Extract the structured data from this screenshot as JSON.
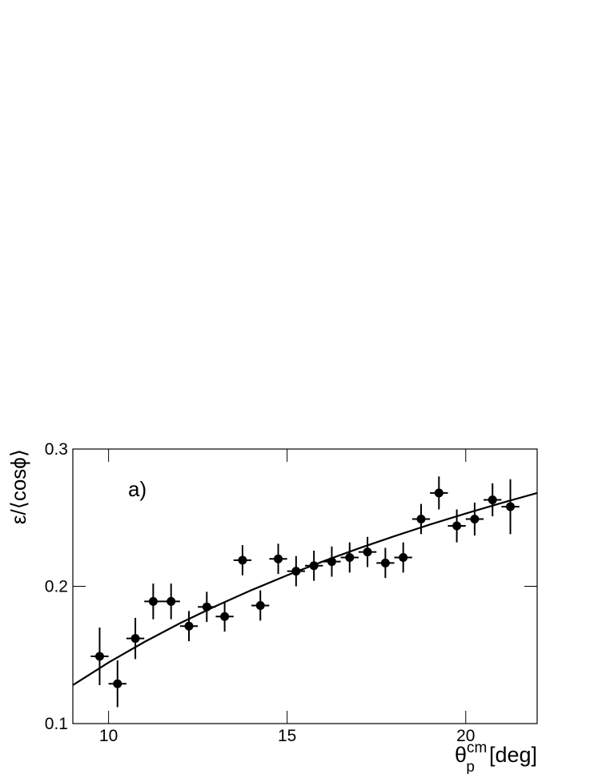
{
  "chart_data": {
    "type": "errorbar",
    "annotation": "a)",
    "ylabel": "ε/⟨cosϕ⟩",
    "xlabel": {
      "symbol": "θ",
      "sub": "p",
      "sup": "cm",
      "unit": "[deg]"
    },
    "xlim": [
      9,
      22
    ],
    "ylim": [
      0.1,
      0.3
    ],
    "xticks": [
      10,
      15,
      20
    ],
    "yticks": [
      0.1,
      0.2,
      0.3
    ],
    "color": "#000000",
    "series": [
      {
        "x": [
          9.75,
          10.25,
          10.75,
          11.25,
          11.75,
          12.25,
          12.75,
          13.25,
          13.75,
          14.25,
          14.75,
          15.25,
          15.75,
          16.25,
          16.75,
          17.25,
          17.75,
          18.25,
          18.75,
          19.25,
          19.75,
          20.25,
          20.75,
          21.25
        ],
        "values": [
          0.149,
          0.129,
          0.162,
          0.189,
          0.189,
          0.171,
          0.185,
          0.178,
          0.219,
          0.186,
          0.22,
          0.211,
          0.215,
          0.218,
          0.221,
          0.225,
          0.217,
          0.221,
          0.249,
          0.268,
          0.244,
          0.249,
          0.263,
          0.258
        ],
        "xerr": [
          0.25,
          0.25,
          0.25,
          0.25,
          0.25,
          0.25,
          0.25,
          0.25,
          0.25,
          0.25,
          0.25,
          0.25,
          0.25,
          0.25,
          0.25,
          0.25,
          0.25,
          0.25,
          0.25,
          0.25,
          0.25,
          0.25,
          0.25,
          0.25
        ],
        "yerr": [
          0.021,
          0.017,
          0.015,
          0.013,
          0.013,
          0.011,
          0.011,
          0.011,
          0.011,
          0.011,
          0.011,
          0.011,
          0.011,
          0.011,
          0.011,
          0.011,
          0.011,
          0.011,
          0.011,
          0.012,
          0.012,
          0.012,
          0.012,
          0.02
        ]
      }
    ],
    "fit": {
      "x": [
        9,
        10,
        11,
        12,
        13,
        14,
        15,
        16,
        17,
        18,
        19,
        20,
        21,
        22
      ],
      "values": [
        0.128,
        0.1445,
        0.1594,
        0.1731,
        0.1856,
        0.1972,
        0.208,
        0.2181,
        0.2276,
        0.2365,
        0.245,
        0.253,
        0.2607,
        0.268
      ]
    }
  }
}
